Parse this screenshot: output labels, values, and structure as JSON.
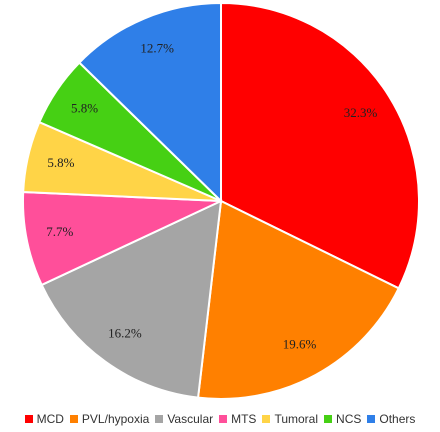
{
  "chart_data": {
    "type": "pie",
    "title": "",
    "categories": [
      "MCD",
      "PVL/hypoxia",
      "Vascular",
      "MTS",
      "Tumoral",
      "NCS",
      "Others"
    ],
    "values": [
      32.3,
      19.6,
      16.2,
      7.7,
      5.8,
      5.8,
      12.7
    ],
    "labels": [
      "32.3%",
      "19.6%",
      "16.2%",
      "7.7%",
      "5.8%",
      "5.8%",
      "12.7%"
    ],
    "colors": [
      "#ff0000",
      "#ff8000",
      "#a5a5a5",
      "#ff4f9a",
      "#ffd447",
      "#46d014",
      "#2f7fe8"
    ],
    "start_angle": "12 o'clock",
    "direction": "clockwise",
    "legend_position": "bottom"
  }
}
